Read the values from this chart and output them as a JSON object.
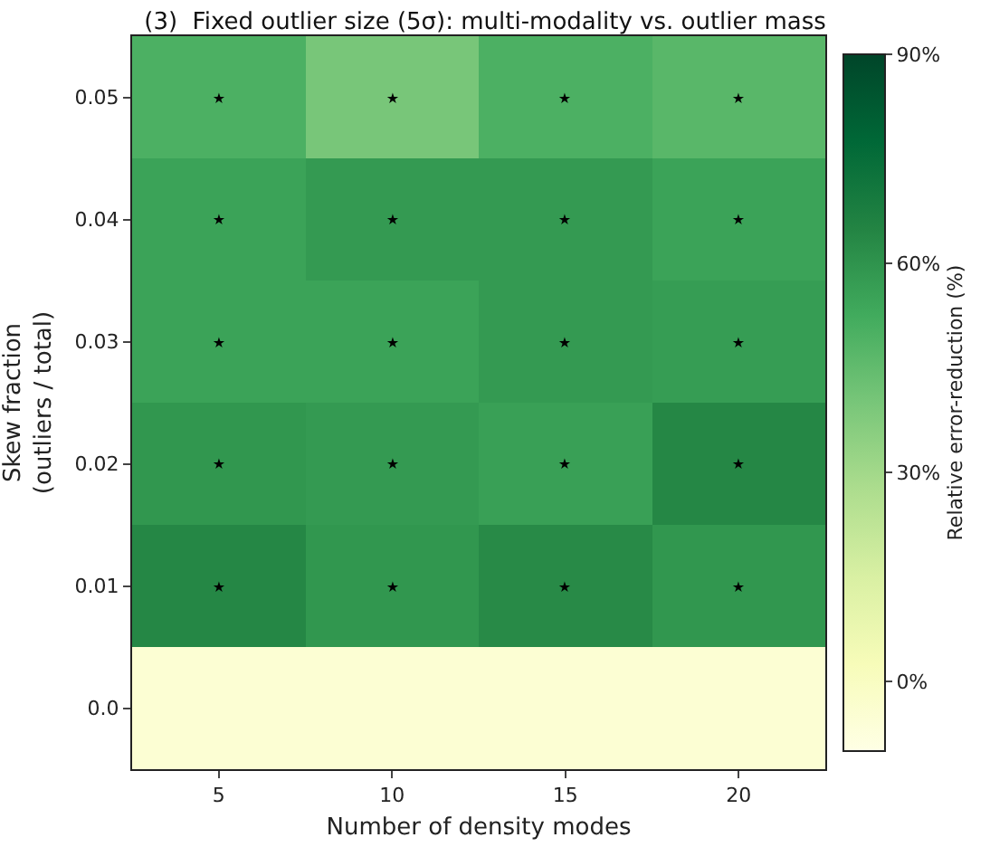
{
  "chart_data": {
    "type": "heatmap",
    "title": "(3)  Fixed outlier size (5σ): multi-modality vs. outlier mass",
    "xlabel": "Number of density modes",
    "ylabel": "Skew fraction\n(outliers / total)",
    "clabel": "Relative error-reduction (%)",
    "categories": [
      "5",
      "10",
      "15",
      "20"
    ],
    "y_categories": [
      "0.05",
      "0.04",
      "0.03",
      "0.02",
      "0.01",
      "0.0"
    ],
    "cells": [
      [
        50,
        40,
        50,
        47
      ],
      [
        55,
        58,
        58,
        55
      ],
      [
        55,
        55,
        58,
        57
      ],
      [
        59,
        58,
        56,
        64
      ],
      [
        64,
        59,
        63,
        59
      ],
      [
        -5,
        -5,
        -5,
        -5
      ]
    ],
    "cell_labels": [
      [
        "★",
        "★",
        "★",
        "★"
      ],
      [
        "★",
        "★",
        "★",
        "★"
      ],
      [
        "★",
        "★",
        "★",
        "★"
      ],
      [
        "★",
        "★",
        "★",
        "★"
      ],
      [
        "★",
        "★",
        "★",
        "★"
      ],
      [
        null,
        null,
        null,
        null
      ]
    ],
    "clim": [
      -10,
      90
    ],
    "cticks": [
      {
        "value": 0,
        "label": "0%"
      },
      {
        "value": 30,
        "label": "30%"
      },
      {
        "value": 60,
        "label": "60%"
      },
      {
        "value": 90,
        "label": "90%"
      }
    ]
  }
}
